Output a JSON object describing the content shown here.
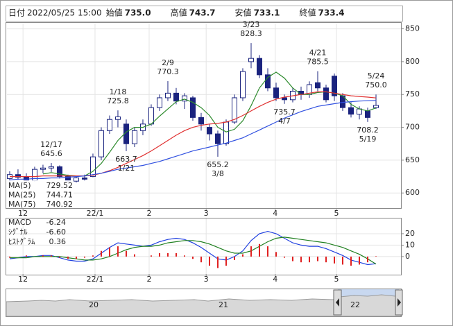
{
  "header": [
    {
      "label": "日付",
      "value": "2022/05/25 15:00"
    },
    {
      "label": "始値",
      "value": "735.0"
    },
    {
      "label": "高値",
      "value": "743.7"
    },
    {
      "label": "安値",
      "value": "733.1"
    },
    {
      "label": "終値",
      "value": "733.4"
    }
  ],
  "chart_data": [
    {
      "type": "candlestick",
      "xlim": [
        -0.33,
        47
      ],
      "xticks": [
        {
          "value": 1.6,
          "label": "12"
        },
        {
          "value": 10.25,
          "label": "22/1"
        },
        {
          "value": 16.75,
          "label": "2"
        },
        {
          "value": 23.6,
          "label": "3"
        },
        {
          "value": 31.9,
          "label": "4"
        },
        {
          "value": 39.25,
          "label": "5"
        }
      ],
      "ylim": [
        577,
        858
      ],
      "yticks": [
        600,
        650,
        700,
        750,
        800,
        850
      ],
      "grid": true,
      "candle_colors": {
        "up": "#ffffff",
        "down": "#1a237e",
        "edge": "#1a237e"
      },
      "ohlc": [
        [
          622,
          633,
          616,
          628
        ],
        [
          628,
          636,
          620,
          624
        ],
        [
          624,
          630,
          615,
          619
        ],
        [
          619,
          640,
          617,
          636
        ],
        [
          636,
          643,
          630,
          638
        ],
        [
          638,
          645.6,
          632,
          640
        ],
        [
          640,
          642,
          622,
          625
        ],
        [
          625,
          628,
          615,
          618
        ],
        [
          618,
          626,
          616,
          623
        ],
        [
          623,
          628,
          619,
          621
        ],
        [
          625,
          660,
          624,
          655
        ],
        [
          655,
          700,
          650,
          695
        ],
        [
          695,
          718,
          690,
          712
        ],
        [
          712,
          725.8,
          700,
          716
        ],
        [
          705,
          712,
          663.7,
          675
        ],
        [
          675,
          700,
          670,
          695
        ],
        [
          695,
          712,
          688,
          705
        ],
        [
          705,
          735,
          702,
          730
        ],
        [
          730,
          750,
          725,
          745
        ],
        [
          745,
          770.3,
          740,
          752
        ],
        [
          752,
          760,
          735,
          740
        ],
        [
          740,
          752,
          728,
          748
        ],
        [
          745,
          748,
          710,
          715
        ],
        [
          715,
          722,
          695,
          705
        ],
        [
          700,
          705,
          680,
          690
        ],
        [
          690,
          695,
          655.2,
          675
        ],
        [
          675,
          712,
          672,
          708
        ],
        [
          708,
          750,
          705,
          745
        ],
        [
          745,
          790,
          740,
          785
        ],
        [
          800,
          828.3,
          790,
          805
        ],
        [
          805,
          810,
          775,
          780
        ],
        [
          780,
          790,
          755,
          760
        ],
        [
          760,
          768,
          740,
          745
        ],
        [
          745,
          750,
          735.7,
          742
        ],
        [
          742,
          760,
          738,
          755
        ],
        [
          755,
          762,
          742,
          750
        ],
        [
          750,
          770,
          745,
          765
        ],
        [
          768,
          785.5,
          755,
          760
        ],
        [
          760,
          765,
          738,
          742
        ],
        [
          778,
          782,
          740,
          748
        ],
        [
          748,
          752,
          725,
          730
        ],
        [
          730,
          738,
          715,
          720
        ],
        [
          720,
          732,
          712,
          728
        ],
        [
          725,
          730,
          708.2,
          715
        ],
        [
          730,
          750.0,
          728,
          733.4
        ]
      ],
      "series": [
        {
          "name": "MA(5)",
          "color": "#2e8b2e",
          "values": [
            null,
            null,
            null,
            null,
            629,
            631,
            629,
            627,
            626,
            626,
            633,
            645,
            662,
            680,
            693,
            700,
            700,
            705,
            717,
            728,
            739,
            743,
            738,
            730,
            718,
            700,
            693,
            697,
            710,
            733,
            760,
            776,
            784,
            775,
            760,
            750,
            750,
            753,
            754,
            752,
            748,
            735,
            728,
            725,
            729.52
          ]
        },
        {
          "name": "MA(25)",
          "color": "#e03030",
          "values": [
            625,
            625,
            625,
            625,
            626,
            626,
            626,
            626,
            626,
            626,
            627,
            630,
            634,
            639,
            645,
            651,
            657,
            664,
            672,
            680,
            688,
            695,
            700,
            703,
            705,
            706,
            708,
            712,
            718,
            725,
            732,
            738,
            743,
            746,
            748,
            750,
            752,
            754,
            754,
            752,
            750,
            748,
            747,
            746,
            744.71
          ]
        },
        {
          "name": "MA(75)",
          "color": "#3050e0",
          "values": [
            620,
            621,
            621,
            622,
            622,
            623,
            623,
            624,
            625,
            626,
            628,
            630,
            633,
            636,
            638,
            640,
            642,
            645,
            648,
            652,
            656,
            660,
            664,
            667,
            670,
            673,
            676,
            680,
            684,
            690,
            696,
            702,
            708,
            714,
            719,
            724,
            728,
            732,
            734,
            736,
            738,
            739,
            740,
            740.5,
            740.92
          ]
        }
      ],
      "annotations": [
        {
          "date": "12/17",
          "value": 645.6,
          "x": 5,
          "side": "above"
        },
        {
          "date": "1/18",
          "value": 725.8,
          "x": 13,
          "side": "above"
        },
        {
          "date": "1/21",
          "value": 663.7,
          "x": 14,
          "side": "below"
        },
        {
          "date": "2/9",
          "value": 770.3,
          "x": 19,
          "side": "above"
        },
        {
          "date": "3/8",
          "value": 655.2,
          "x": 25,
          "side": "below"
        },
        {
          "date": "3/23",
          "value": 828.3,
          "x": 29,
          "side": "above"
        },
        {
          "date": "4/7",
          "value": 735.7,
          "x": 33,
          "side": "below"
        },
        {
          "date": "4/21",
          "value": 785.5,
          "x": 37,
          "side": "above"
        },
        {
          "date": "5/19",
          "value": 708.2,
          "x": 43,
          "side": "below"
        },
        {
          "date": "5/24",
          "value": 750.0,
          "value_label": "750.0",
          "x": 44,
          "side": "above"
        }
      ]
    },
    {
      "type": "macd",
      "xlim": [
        -0.33,
        47
      ],
      "xticks": [
        {
          "value": 1.6,
          "label": "12"
        },
        {
          "value": 10.25,
          "label": "22/1"
        },
        {
          "value": 16.75,
          "label": "2"
        },
        {
          "value": 23.6,
          "label": "3"
        },
        {
          "value": 31.9,
          "label": "4"
        },
        {
          "value": 39.25,
          "label": "5"
        }
      ],
      "ylim": [
        -15.2,
        33.3
      ],
      "yticks": [
        0,
        10,
        20
      ],
      "grid": true,
      "series": [
        {
          "name": "MACD",
          "color": "#2040e0",
          "kind": "line",
          "values": [
            -2,
            -1,
            0,
            0,
            1,
            1,
            -1,
            -3,
            -4,
            -4,
            -2,
            3,
            8,
            12,
            11,
            10,
            9,
            10,
            13,
            15,
            16,
            15,
            12,
            8,
            3,
            -2,
            -3,
            0,
            5,
            14,
            20,
            22,
            20,
            16,
            12,
            10,
            9,
            9,
            7,
            4,
            1,
            -3,
            -5,
            -7,
            -6.24
          ]
        },
        {
          "name": "ｼｸﾞﾅﾙ",
          "color": "#208020",
          "kind": "line",
          "values": [
            -1,
            -1,
            -1,
            0,
            0,
            0,
            0,
            -1,
            -2,
            -3,
            -3,
            -2,
            0,
            3,
            6,
            8,
            9,
            9,
            10,
            12,
            13,
            14,
            14,
            13,
            11,
            8,
            5,
            3,
            3,
            5,
            9,
            13,
            16,
            17,
            16,
            15,
            14,
            13,
            12,
            10,
            8,
            5,
            2,
            -2,
            -6.6
          ],
          "last_label": "-6.60"
        },
        {
          "name": "ﾋｽﾄｸﾞﾗﾑ",
          "color": "#e02020",
          "kind": "histogram",
          "values": [
            -1,
            0,
            1,
            0,
            1,
            1,
            -1,
            -2,
            -2,
            -1,
            1,
            5,
            8,
            9,
            5,
            2,
            0,
            1,
            3,
            3,
            3,
            1,
            -2,
            -5,
            -8,
            -10,
            -8,
            -3,
            2,
            9,
            11,
            9,
            4,
            -1,
            -4,
            -5,
            -5,
            -4,
            -5,
            -6,
            -7,
            -8,
            -7,
            -5,
            0.36
          ]
        }
      ]
    }
  ],
  "navigator": {
    "labels": [
      "20",
      "21",
      "22"
    ]
  }
}
